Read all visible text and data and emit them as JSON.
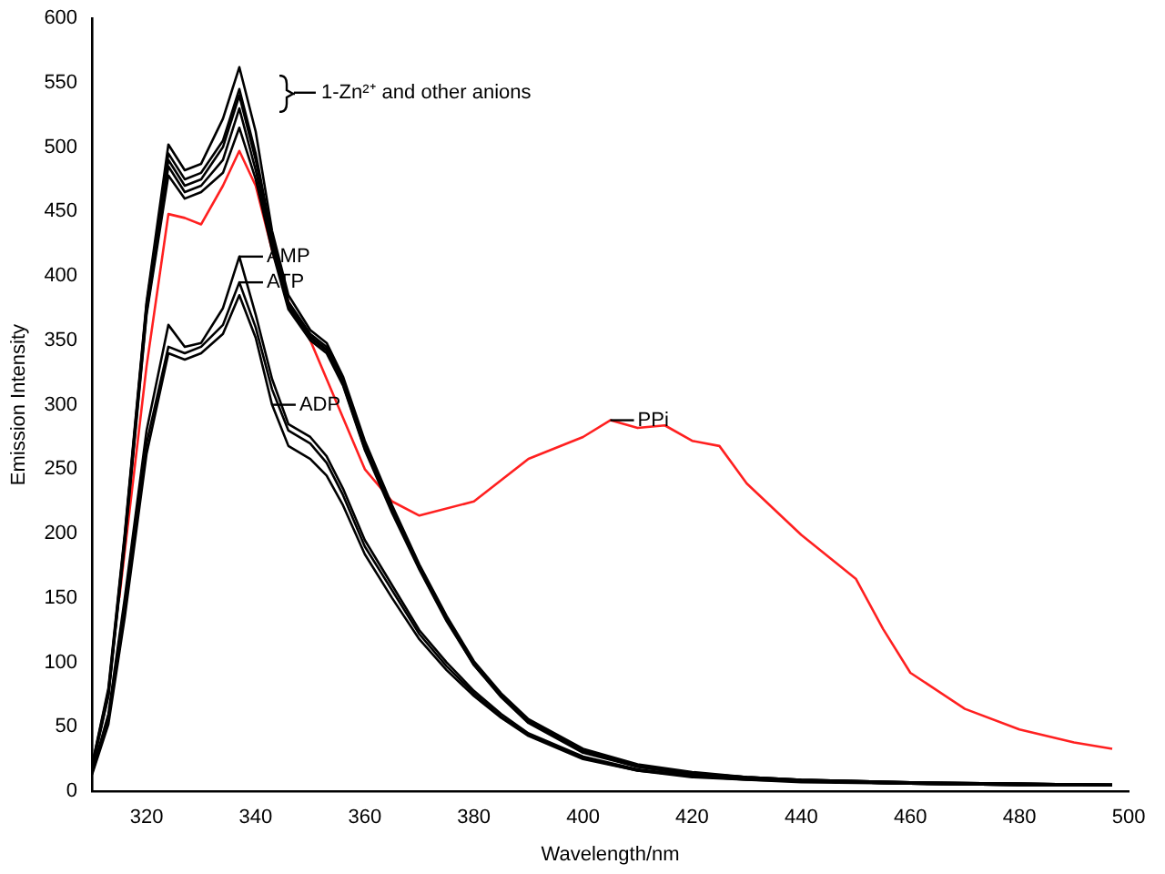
{
  "chart_data": {
    "type": "line",
    "xlabel": "Wavelength/nm",
    "ylabel": "Emission Intensity",
    "x": [
      310,
      313,
      316,
      320,
      324,
      327,
      330,
      334,
      337,
      340,
      343,
      346,
      350,
      353,
      356,
      360,
      365,
      370,
      375,
      380,
      385,
      390,
      400,
      410,
      420,
      430,
      440,
      460,
      480,
      497
    ],
    "xlim": [
      310,
      500
    ],
    "xticks": [
      320,
      340,
      360,
      380,
      400,
      420,
      440,
      460,
      480,
      500
    ],
    "ylim": [
      0,
      600
    ],
    "yticks": [
      0,
      50,
      100,
      150,
      200,
      250,
      300,
      350,
      400,
      450,
      500,
      550,
      600
    ],
    "grid": false,
    "legend": false,
    "marker": "none",
    "line_style": "solid",
    "series": [
      {
        "color": "#000000",
        "values": [
          20,
          80,
          200,
          380,
          502,
          482,
          487,
          522,
          562,
          512,
          435,
          385,
          358,
          348,
          322,
          272,
          222,
          176,
          136,
          101,
          76,
          56,
          33,
          21,
          15,
          11,
          9,
          7,
          6,
          5
        ]
      },
      {
        "color": "#000000",
        "values": [
          20,
          78,
          198,
          378,
          495,
          475,
          480,
          505,
          545,
          495,
          430,
          380,
          355,
          345,
          320,
          270,
          220,
          175,
          135,
          100,
          75,
          55,
          32,
          20,
          14,
          11,
          9,
          7,
          6,
          5
        ]
      },
      {
        "color": "#000000",
        "values": [
          19,
          76,
          196,
          376,
          490,
          470,
          475,
          500,
          540,
          490,
          428,
          378,
          353,
          343,
          318,
          268,
          219,
          174,
          134,
          99,
          74,
          54,
          31,
          20,
          14,
          11,
          9,
          7,
          6,
          5
        ]
      },
      {
        "color": "#000000",
        "values": [
          18,
          75,
          194,
          372,
          485,
          465,
          470,
          490,
          530,
          482,
          425,
          376,
          352,
          342,
          316,
          266,
          218,
          173,
          133,
          98,
          74,
          54,
          31,
          19,
          13,
          10,
          8,
          6,
          6,
          5
        ]
      },
      {
        "color": "#000000",
        "values": [
          18,
          74,
          192,
          370,
          478,
          460,
          465,
          480,
          515,
          475,
          420,
          374,
          350,
          340,
          315,
          265,
          216,
          172,
          132,
          98,
          73,
          53,
          30,
          19,
          13,
          10,
          8,
          6,
          5,
          5
        ]
      },
      {
        "color": "#000000",
        "values": [
          15,
          60,
          150,
          280,
          362,
          345,
          348,
          375,
          415,
          370,
          320,
          285,
          275,
          260,
          235,
          195,
          160,
          125,
          100,
          78,
          60,
          45,
          27,
          17,
          12,
          10,
          8,
          6,
          5,
          5
        ]
      },
      {
        "color": "#000000",
        "values": [
          14,
          56,
          142,
          270,
          345,
          340,
          345,
          362,
          395,
          360,
          312,
          280,
          270,
          255,
          230,
          190,
          156,
          122,
          97,
          76,
          58,
          44,
          26,
          16,
          12,
          9,
          8,
          6,
          5,
          5
        ]
      },
      {
        "color": "#000000",
        "values": [
          13,
          52,
          135,
          262,
          340,
          335,
          340,
          355,
          385,
          352,
          300,
          268,
          258,
          245,
          222,
          184,
          150,
          118,
          94,
          74,
          57,
          43,
          25,
          16,
          11,
          9,
          7,
          6,
          5,
          5
        ]
      },
      {
        "color": "#ff2020",
        "x": [
          315,
          320,
          324,
          327,
          330,
          334,
          337,
          340,
          343,
          346,
          350,
          353,
          356,
          360,
          365,
          370,
          380,
          390,
          400,
          405,
          410,
          415,
          420,
          425,
          430,
          440,
          450,
          455,
          460,
          470,
          480,
          490,
          497
        ],
        "values": [
          150,
          330,
          448,
          445,
          440,
          470,
          497,
          470,
          420,
          380,
          350,
          320,
          290,
          250,
          225,
          214,
          225,
          258,
          275,
          288,
          282,
          284,
          272,
          268,
          239,
          199,
          165,
          126,
          92,
          64,
          48,
          38,
          33
        ]
      }
    ],
    "annotations": [
      "1-Zn²⁺ and other anions",
      {
        "text": "AMP",
        "x": 337,
        "y": 415
      },
      {
        "text": "ATP",
        "x": 337,
        "y": 395
      },
      {
        "text": "ADP",
        "x": 343,
        "y": 300
      },
      {
        "text": "PPi",
        "x": 405,
        "y": 288
      }
    ]
  }
}
